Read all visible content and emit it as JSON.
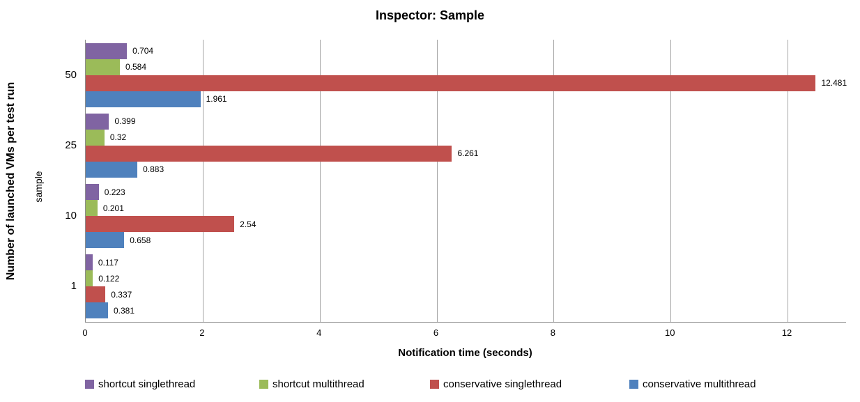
{
  "title": "Inspector: Sample",
  "chart_data": {
    "type": "bar",
    "orientation": "horizontal",
    "title": "Inspector: Sample",
    "xlabel": "Notification time (seconds)",
    "ylabel": "Number of launched VMs per test run",
    "ylabel_secondary": "sample",
    "categories": [
      "50",
      "25",
      "10",
      "1"
    ],
    "series": [
      {
        "name": "shortcut singlethread",
        "color": "#8064A2",
        "values": [
          0.704,
          0.399,
          0.223,
          0.117
        ],
        "labels": [
          "0.704",
          "0.399",
          "0.223",
          "0.117"
        ]
      },
      {
        "name": "shortcut multithread",
        "color": "#9BBB59",
        "values": [
          0.584,
          0.32,
          0.201,
          0.122
        ],
        "labels": [
          "0.584",
          "0.32",
          "0.201",
          "0.122"
        ]
      },
      {
        "name": "conservative singlethread",
        "color": "#C0504D",
        "values": [
          12.481,
          6.261,
          2.54,
          0.337
        ],
        "labels": [
          "12.481",
          "6.261",
          "2.54",
          "0.337"
        ]
      },
      {
        "name": "conservative multithread",
        "color": "#4F81BD",
        "values": [
          1.961,
          0.883,
          0.658,
          0.381
        ],
        "labels": [
          "1.961",
          "0.883",
          "0.658",
          "0.381"
        ]
      }
    ],
    "xlim": [
      0,
      13
    ],
    "xticks": [
      "0",
      "2",
      "4",
      "6",
      "8",
      "10",
      "12"
    ],
    "grid": true,
    "grid_color": "#a6a6a6",
    "axis_color": "#8c8c8c",
    "legend_position": "bottom"
  }
}
